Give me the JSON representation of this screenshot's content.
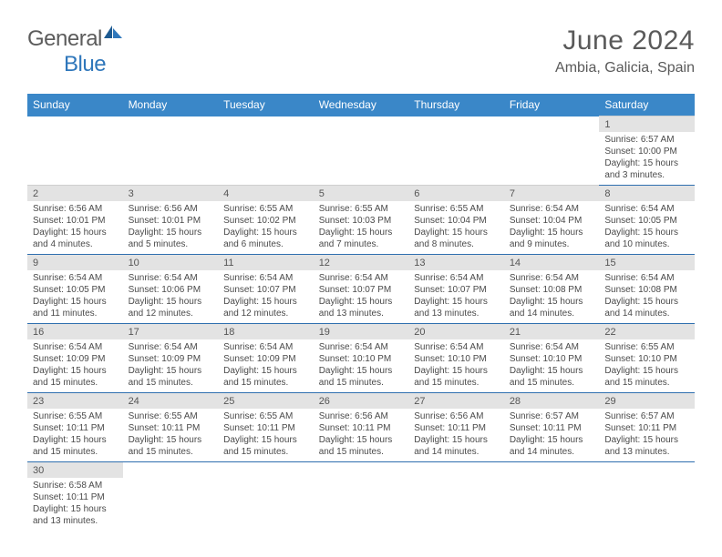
{
  "logo": {
    "general": "General",
    "blue": "Blue"
  },
  "title": {
    "month": "June 2024",
    "location": "Ambia, Galicia, Spain"
  },
  "colors": {
    "header_bg": "#3a87c8",
    "header_text": "#ffffff",
    "daynum_bg": "#e3e3e3",
    "row_border": "#2f6faf",
    "body_text": "#4a4a4a",
    "title_text": "#5a5a5a",
    "logo_blue": "#2f77bb",
    "logo_gray": "#5c5c5c"
  },
  "typography": {
    "month_fontsize": 30,
    "location_fontsize": 16,
    "dayheader_fontsize": 12,
    "daynum_fontsize": 11,
    "detail_fontsize": 10
  },
  "dayHeaders": [
    "Sunday",
    "Monday",
    "Tuesday",
    "Wednesday",
    "Thursday",
    "Friday",
    "Saturday"
  ],
  "weeks": [
    [
      null,
      null,
      null,
      null,
      null,
      null,
      {
        "n": "1",
        "sr": "Sunrise: 6:57 AM",
        "ss": "Sunset: 10:00 PM",
        "dl": "Daylight: 15 hours and 3 minutes."
      }
    ],
    [
      {
        "n": "2",
        "sr": "Sunrise: 6:56 AM",
        "ss": "Sunset: 10:01 PM",
        "dl": "Daylight: 15 hours and 4 minutes."
      },
      {
        "n": "3",
        "sr": "Sunrise: 6:56 AM",
        "ss": "Sunset: 10:01 PM",
        "dl": "Daylight: 15 hours and 5 minutes."
      },
      {
        "n": "4",
        "sr": "Sunrise: 6:55 AM",
        "ss": "Sunset: 10:02 PM",
        "dl": "Daylight: 15 hours and 6 minutes."
      },
      {
        "n": "5",
        "sr": "Sunrise: 6:55 AM",
        "ss": "Sunset: 10:03 PM",
        "dl": "Daylight: 15 hours and 7 minutes."
      },
      {
        "n": "6",
        "sr": "Sunrise: 6:55 AM",
        "ss": "Sunset: 10:04 PM",
        "dl": "Daylight: 15 hours and 8 minutes."
      },
      {
        "n": "7",
        "sr": "Sunrise: 6:54 AM",
        "ss": "Sunset: 10:04 PM",
        "dl": "Daylight: 15 hours and 9 minutes."
      },
      {
        "n": "8",
        "sr": "Sunrise: 6:54 AM",
        "ss": "Sunset: 10:05 PM",
        "dl": "Daylight: 15 hours and 10 minutes."
      }
    ],
    [
      {
        "n": "9",
        "sr": "Sunrise: 6:54 AM",
        "ss": "Sunset: 10:05 PM",
        "dl": "Daylight: 15 hours and 11 minutes."
      },
      {
        "n": "10",
        "sr": "Sunrise: 6:54 AM",
        "ss": "Sunset: 10:06 PM",
        "dl": "Daylight: 15 hours and 12 minutes."
      },
      {
        "n": "11",
        "sr": "Sunrise: 6:54 AM",
        "ss": "Sunset: 10:07 PM",
        "dl": "Daylight: 15 hours and 12 minutes."
      },
      {
        "n": "12",
        "sr": "Sunrise: 6:54 AM",
        "ss": "Sunset: 10:07 PM",
        "dl": "Daylight: 15 hours and 13 minutes."
      },
      {
        "n": "13",
        "sr": "Sunrise: 6:54 AM",
        "ss": "Sunset: 10:07 PM",
        "dl": "Daylight: 15 hours and 13 minutes."
      },
      {
        "n": "14",
        "sr": "Sunrise: 6:54 AM",
        "ss": "Sunset: 10:08 PM",
        "dl": "Daylight: 15 hours and 14 minutes."
      },
      {
        "n": "15",
        "sr": "Sunrise: 6:54 AM",
        "ss": "Sunset: 10:08 PM",
        "dl": "Daylight: 15 hours and 14 minutes."
      }
    ],
    [
      {
        "n": "16",
        "sr": "Sunrise: 6:54 AM",
        "ss": "Sunset: 10:09 PM",
        "dl": "Daylight: 15 hours and 15 minutes."
      },
      {
        "n": "17",
        "sr": "Sunrise: 6:54 AM",
        "ss": "Sunset: 10:09 PM",
        "dl": "Daylight: 15 hours and 15 minutes."
      },
      {
        "n": "18",
        "sr": "Sunrise: 6:54 AM",
        "ss": "Sunset: 10:09 PM",
        "dl": "Daylight: 15 hours and 15 minutes."
      },
      {
        "n": "19",
        "sr": "Sunrise: 6:54 AM",
        "ss": "Sunset: 10:10 PM",
        "dl": "Daylight: 15 hours and 15 minutes."
      },
      {
        "n": "20",
        "sr": "Sunrise: 6:54 AM",
        "ss": "Sunset: 10:10 PM",
        "dl": "Daylight: 15 hours and 15 minutes."
      },
      {
        "n": "21",
        "sr": "Sunrise: 6:54 AM",
        "ss": "Sunset: 10:10 PM",
        "dl": "Daylight: 15 hours and 15 minutes."
      },
      {
        "n": "22",
        "sr": "Sunrise: 6:55 AM",
        "ss": "Sunset: 10:10 PM",
        "dl": "Daylight: 15 hours and 15 minutes."
      }
    ],
    [
      {
        "n": "23",
        "sr": "Sunrise: 6:55 AM",
        "ss": "Sunset: 10:11 PM",
        "dl": "Daylight: 15 hours and 15 minutes."
      },
      {
        "n": "24",
        "sr": "Sunrise: 6:55 AM",
        "ss": "Sunset: 10:11 PM",
        "dl": "Daylight: 15 hours and 15 minutes."
      },
      {
        "n": "25",
        "sr": "Sunrise: 6:55 AM",
        "ss": "Sunset: 10:11 PM",
        "dl": "Daylight: 15 hours and 15 minutes."
      },
      {
        "n": "26",
        "sr": "Sunrise: 6:56 AM",
        "ss": "Sunset: 10:11 PM",
        "dl": "Daylight: 15 hours and 15 minutes."
      },
      {
        "n": "27",
        "sr": "Sunrise: 6:56 AM",
        "ss": "Sunset: 10:11 PM",
        "dl": "Daylight: 15 hours and 14 minutes."
      },
      {
        "n": "28",
        "sr": "Sunrise: 6:57 AM",
        "ss": "Sunset: 10:11 PM",
        "dl": "Daylight: 15 hours and 14 minutes."
      },
      {
        "n": "29",
        "sr": "Sunrise: 6:57 AM",
        "ss": "Sunset: 10:11 PM",
        "dl": "Daylight: 15 hours and 13 minutes."
      }
    ],
    [
      {
        "n": "30",
        "sr": "Sunrise: 6:58 AM",
        "ss": "Sunset: 10:11 PM",
        "dl": "Daylight: 15 hours and 13 minutes."
      },
      null,
      null,
      null,
      null,
      null,
      null
    ]
  ]
}
